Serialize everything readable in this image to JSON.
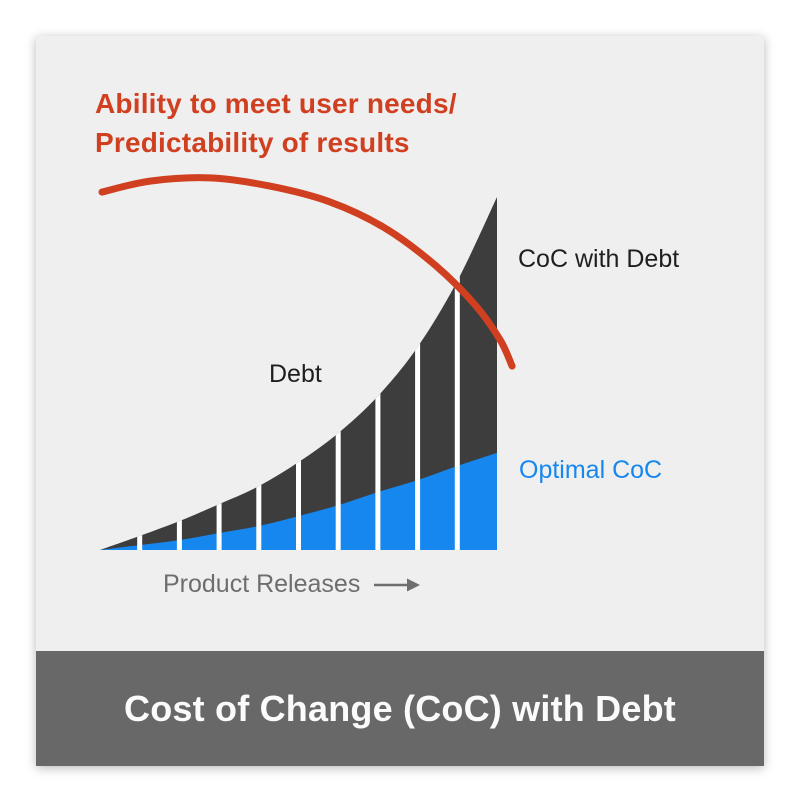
{
  "title": {
    "line1": "Ability to meet user needs/",
    "line2": "Predictability of results"
  },
  "chart_labels": {
    "coc_with_debt": "CoC with Debt",
    "debt": "Debt",
    "optimal_coc": "Optimal CoC",
    "x_axis": "Product Releases"
  },
  "footer": {
    "title": "Cost of Change (CoC) with Debt"
  },
  "colors": {
    "accent_red": "#d04020",
    "bar_dark": "#3d3d3d",
    "bar_blue": "#1787f0",
    "panel_bg": "#efefef",
    "footer_bg": "#686868",
    "gap_white": "#ffffff",
    "axis_text": "#6e6e6e",
    "label_dark": "#1f1f1f"
  },
  "chart_data": {
    "type": "area",
    "title": "Cost of Change (CoC) with Debt",
    "xlabel": "Product Releases",
    "x": [
      0,
      1,
      2,
      3,
      4,
      5,
      6,
      7,
      8,
      9,
      10
    ],
    "n_segments": 10,
    "ylim": [
      0,
      100
    ],
    "grid": false,
    "legend_position": "inline-annotations",
    "series": [
      {
        "name": "CoC with Debt",
        "color": "#3d3d3d",
        "values": [
          0,
          4,
          8.2,
          13,
          18.1,
          24.9,
          33.1,
          43.6,
          57.5,
          76.2,
          100
        ]
      },
      {
        "name": "Optimal CoC",
        "color": "#1787f0",
        "values": [
          0,
          1.4,
          2.8,
          4.8,
          6.8,
          9.6,
          12.7,
          16.4,
          19.8,
          23.8,
          27.5
        ]
      }
    ],
    "ability_curve": {
      "name": "Ability to meet user needs / Predictability of results",
      "color": "#d04020",
      "stroke_width": 7,
      "points_x": [
        0.05,
        1.26,
        2.77,
        4.28,
        5.79,
        7.18,
        8.44,
        9.45,
        10.08,
        10.38
      ],
      "points_y": [
        101.4,
        104.5,
        105.4,
        103.1,
        98.6,
        91.2,
        80.7,
        69.4,
        59.5,
        52.1
      ]
    }
  }
}
